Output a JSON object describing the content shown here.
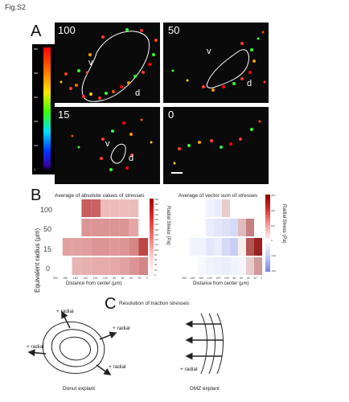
{
  "figure_label": "Fig.S2",
  "panels": {
    "a": "A",
    "b": "B",
    "c": "C"
  },
  "micrographs": [
    {
      "label": "100",
      "v": "v",
      "d": "d"
    },
    {
      "label": "50",
      "v": "v",
      "d": "d"
    },
    {
      "label": "15",
      "v": "v",
      "d": "d"
    },
    {
      "label": "0"
    }
  ],
  "colorbar_ticks": [
    "500",
    "400",
    "300",
    "200",
    "100",
    "0"
  ],
  "heatmaps": [
    {
      "title": "Average of absolute values of stresses",
      "ylabel": "Equivalent radius (μm)",
      "yticks": [
        "100",
        "50",
        "15",
        "0"
      ],
      "xlabel": "Distance from center (μm)",
      "xticks": [
        "200",
        "180",
        "160",
        "140",
        "120",
        "100",
        "80",
        "60",
        "40",
        "20",
        "0"
      ],
      "cbar_label": "Radial Stress (Pa)",
      "cbar_ticks": [
        "300",
        "280",
        "260",
        "240",
        "220",
        "200",
        "180",
        "160",
        "140",
        "120",
        "100",
        "80",
        "60",
        "40",
        "20",
        "0"
      ]
    },
    {
      "title": "Average of vector sum of stresses",
      "xlabel": "Distance from center (μm)",
      "xticks": [
        "200",
        "180",
        "160",
        "140",
        "120",
        "100",
        "80",
        "60",
        "40",
        "20",
        "0"
      ],
      "cbar_label": "Radial Stress (Pa)",
      "cbar_ticks": [
        "300",
        "200",
        "100",
        "0",
        "-100",
        "-200"
      ]
    }
  ],
  "section_c": {
    "title": "Resolution of traction stresses",
    "radial": "radial",
    "plus": "+",
    "donut_caption": "Donut explant",
    "dmz_caption": "DMZ explant"
  },
  "chart_data": [
    {
      "type": "heatmap",
      "title": "Average of absolute values of stresses",
      "xlabel": "Distance from center (μm)",
      "ylabel": "Equivalent radius (μm)",
      "x_categories": [
        "200",
        "180",
        "160",
        "140",
        "120",
        "100",
        "80",
        "60",
        "40",
        "20"
      ],
      "y_categories": [
        "100",
        "50",
        "15",
        "0"
      ],
      "values": [
        [
          null,
          null,
          null,
          180,
          175,
          60,
          60,
          60,
          60,
          null
        ],
        [
          null,
          null,
          null,
          110,
          110,
          110,
          110,
          110,
          90,
          null
        ],
        [
          null,
          95,
          95,
          100,
          110,
          110,
          105,
          110,
          130,
          210
        ],
        [
          null,
          null,
          70,
          75,
          80,
          80,
          85,
          95,
          110,
          130
        ]
      ],
      "colorbar_range": [
        0,
        300
      ],
      "colorbar_label": "Radial Stress (Pa)"
    },
    {
      "type": "heatmap",
      "title": "Average of vector sum of stresses",
      "xlabel": "Distance from center (μm)",
      "x_categories": [
        "200",
        "180",
        "160",
        "140",
        "120",
        "100",
        "80",
        "60",
        "40",
        "20"
      ],
      "y_categories": [
        "100",
        "50",
        "15",
        "0"
      ],
      "values": [
        [
          null,
          null,
          null,
          -20,
          -30,
          60,
          null,
          null,
          null,
          null
        ],
        [
          null,
          null,
          null,
          -30,
          -40,
          -50,
          -60,
          80,
          150,
          null
        ],
        [
          null,
          -20,
          -20,
          -40,
          -30,
          -60,
          -80,
          20,
          200,
          260
        ],
        [
          null,
          null,
          -10,
          -20,
          -25,
          -30,
          -20,
          -15,
          60,
          120
        ]
      ],
      "colorbar_range": [
        -200,
        300
      ],
      "colorbar_label": "Radial Stress (Pa)"
    }
  ]
}
